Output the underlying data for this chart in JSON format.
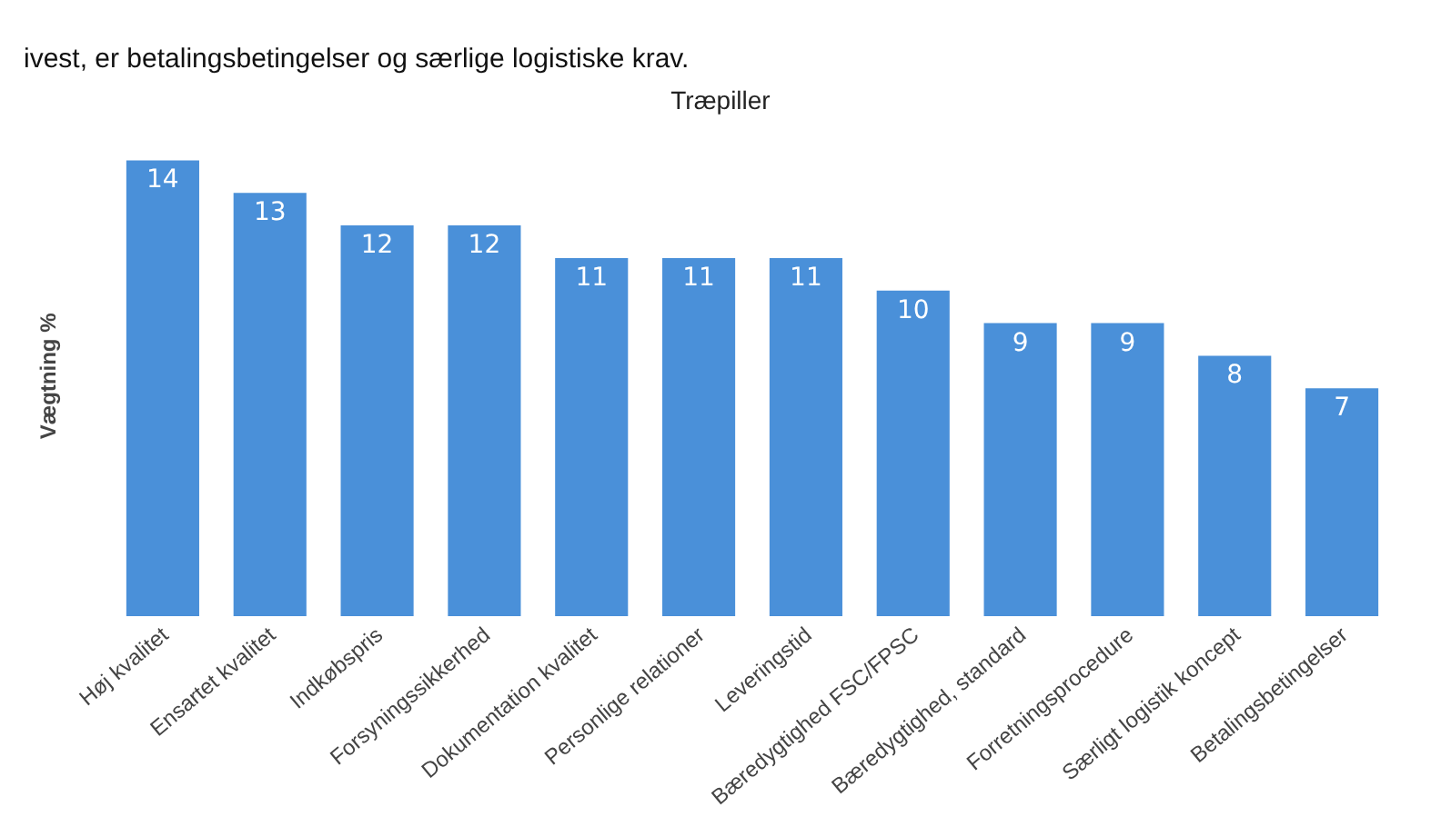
{
  "chart_data": {
    "type": "bar",
    "title": "Træpiller",
    "ylabel": "Vægtning %",
    "annotations": [
      "ivest, er betalingsbetingelser og særlige logistiske krav."
    ],
    "categories": [
      "Høj kvalitet",
      "Ensartet kvalitet",
      "Indkøbspris",
      "Forsyningssikkerhed",
      "Dokumentation kvalitet",
      "Personlige relationer",
      "Leveringstid",
      "Bæredygtighed FSC/FPSC",
      "Bæredygtighed, standard",
      "Forretningsprocedure",
      "Særligt logistik koncept",
      "Betalingsbetingelser"
    ],
    "values": [
      14,
      13,
      12,
      12,
      11,
      11,
      11,
      10,
      9,
      9,
      8,
      7
    ],
    "color": "#4a90d9",
    "data_labels": true
  }
}
